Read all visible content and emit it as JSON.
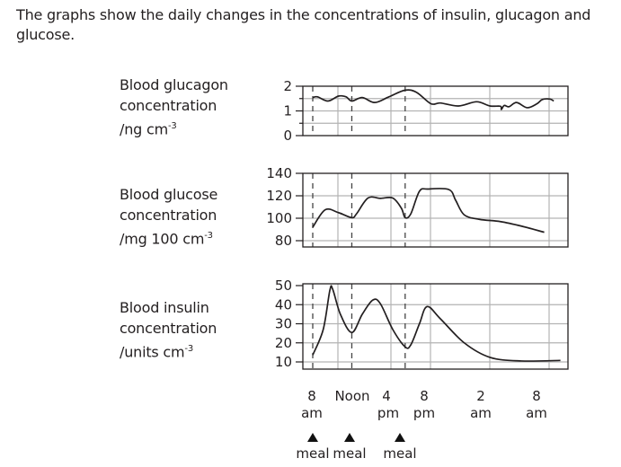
{
  "intro": "The graphs show the daily changes in the concentrations of insulin, glucagon and glucose.",
  "chart_data": [
    {
      "type": "line",
      "ylabel": [
        "Blood glucagon",
        "concentration",
        "/ng cm",
        "-3"
      ],
      "ylim": [
        0,
        2
      ],
      "yticks": [
        "0",
        "1",
        "2"
      ],
      "grid": true,
      "x": [
        8.0,
        8.5,
        9.6,
        10.7,
        11.5,
        12.1,
        13.2,
        14.5,
        16.0,
        17.7,
        18.9,
        20.4,
        21.4,
        23.3,
        25.2,
        26.6,
        27.7,
        27.8,
        28.1,
        28.6,
        29.4,
        30.5,
        31.5,
        32.1,
        32.9,
        33.3
      ],
      "values": [
        1.54,
        1.57,
        1.4,
        1.6,
        1.57,
        1.4,
        1.54,
        1.34,
        1.57,
        1.84,
        1.75,
        1.29,
        1.32,
        1.2,
        1.37,
        1.2,
        1.19,
        1.06,
        1.22,
        1.17,
        1.34,
        1.13,
        1.28,
        1.46,
        1.48,
        1.4
      ]
    },
    {
      "type": "line",
      "ylabel": [
        "Blood glucose",
        "concentration",
        "/mg 100 cm",
        "-3"
      ],
      "ylim": [
        78,
        140
      ],
      "yticks": [
        "80",
        "100",
        "120",
        "140"
      ],
      "grid": true,
      "x": [
        8.0,
        9.3,
        10.7,
        12.1,
        12.6,
        13.8,
        15.1,
        16.4,
        17.3,
        17.7,
        18.3,
        19.2,
        20.1,
        22.3,
        23.0,
        23.9,
        25.5,
        27.7,
        29.9,
        32.3
      ],
      "values": [
        92,
        107.5,
        105,
        100.5,
        104,
        118,
        117.7,
        118,
        109,
        100.5,
        104,
        124,
        126,
        125.5,
        116,
        103,
        99,
        97,
        93,
        87.5
      ]
    },
    {
      "type": "line",
      "ylabel": [
        "Blood insulin",
        "concentration",
        "/units cm",
        "-3"
      ],
      "ylim": [
        6,
        50
      ],
      "yticks": [
        "10",
        "20",
        "30",
        "40",
        "50"
      ],
      "grid": true,
      "x": [
        8.0,
        9.1,
        9.8,
        10.1,
        10.9,
        12.1,
        13.2,
        14.3,
        15.1,
        16.4,
        17.7,
        18.3,
        19.2,
        20.0,
        21.4,
        23.9,
        26.6,
        29.9,
        34.0
      ],
      "values": [
        13.6,
        27,
        47.6,
        48,
        35,
        25.4,
        35,
        42.4,
        40.5,
        27,
        17.9,
        19,
        30,
        39,
        32.6,
        20,
        12.4,
        10.5,
        10.8
      ]
    }
  ],
  "x_axis": {
    "ticks": [
      {
        "top": "8",
        "bottom": "am"
      },
      {
        "top": "Noon",
        "bottom": ""
      },
      {
        "top": "4",
        "bottom": "pm"
      },
      {
        "top": "8",
        "bottom": "pm"
      },
      {
        "top": "2",
        "bottom": "am"
      },
      {
        "top": "8",
        "bottom": "am"
      }
    ]
  },
  "meals": {
    "label": "meal",
    "times": [
      8,
      12.1,
      17.7
    ]
  },
  "colors": {
    "line": "#231f20",
    "grid": "#b3b3b3",
    "ytick_text": "#231f20"
  }
}
